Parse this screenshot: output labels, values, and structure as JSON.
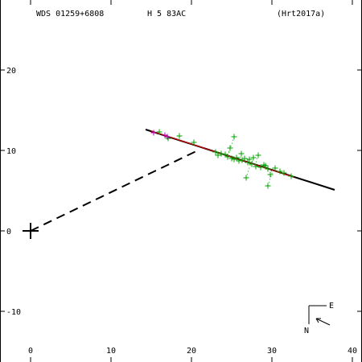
{
  "header": {
    "wds_id": "WDS 01259+6808",
    "discoverer": "H 5  83AC",
    "reference": "(Hrt2017a)"
  },
  "compass": {
    "east_label": "E",
    "north_label": "N"
  },
  "chart_data": {
    "type": "scatter",
    "title": "",
    "xlabel": "",
    "ylabel": "",
    "xlim": [
      -3.8,
      41.2
    ],
    "ylim": [
      -16.3,
      28.7
    ],
    "x_ticks": [
      0,
      10,
      20,
      30,
      40
    ],
    "y_ticks": [
      -10,
      0,
      10,
      20
    ],
    "x_tick_labels": [
      "0",
      "10",
      "20",
      "30",
      "40"
    ],
    "y_tick_labels": [
      "-10",
      "0",
      "10",
      "20"
    ],
    "primary": {
      "x": 0,
      "y": 0
    },
    "orbit_line": {
      "from": [
        14.3,
        12.6
      ],
      "to": [
        37.8,
        5.1
      ]
    },
    "red_line": {
      "from": [
        15.0,
        12.4
      ],
      "to": [
        32.7,
        6.7
      ]
    },
    "node_line": {
      "from": [
        0,
        0
      ],
      "to": [
        21.0,
        10.1
      ]
    },
    "magenta_points": [
      [
        15.3,
        12.2
      ],
      [
        16.7,
        11.9
      ],
      [
        17.0,
        11.7
      ]
    ],
    "green_points": [
      [
        16.0,
        12.3
      ],
      [
        17.1,
        11.5
      ],
      [
        18.5,
        11.8
      ],
      [
        20.3,
        11.0
      ],
      [
        23.0,
        9.8
      ],
      [
        23.3,
        9.4
      ],
      [
        23.7,
        9.6
      ],
      [
        24.2,
        9.5
      ],
      [
        24.5,
        9.2
      ],
      [
        24.8,
        10.3
      ],
      [
        25.0,
        9.0
      ],
      [
        25.3,
        11.7
      ],
      [
        25.3,
        8.9
      ],
      [
        25.6,
        9.1
      ],
      [
        25.9,
        8.7
      ],
      [
        26.2,
        9.6
      ],
      [
        26.3,
        8.8
      ],
      [
        26.6,
        9.0
      ],
      [
        26.8,
        6.6
      ],
      [
        27.0,
        8.5
      ],
      [
        27.2,
        8.9
      ],
      [
        27.5,
        8.3
      ],
      [
        27.7,
        9.1
      ],
      [
        28.0,
        8.0
      ],
      [
        28.3,
        9.4
      ],
      [
        28.6,
        7.9
      ],
      [
        29.0,
        8.2
      ],
      [
        29.2,
        8.1
      ],
      [
        29.5,
        7.7
      ],
      [
        29.5,
        5.6
      ],
      [
        29.8,
        7.0
      ],
      [
        30.4,
        7.8
      ],
      [
        31.0,
        7.4
      ],
      [
        31.5,
        7.2
      ],
      [
        32.4,
        6.8
      ]
    ]
  }
}
